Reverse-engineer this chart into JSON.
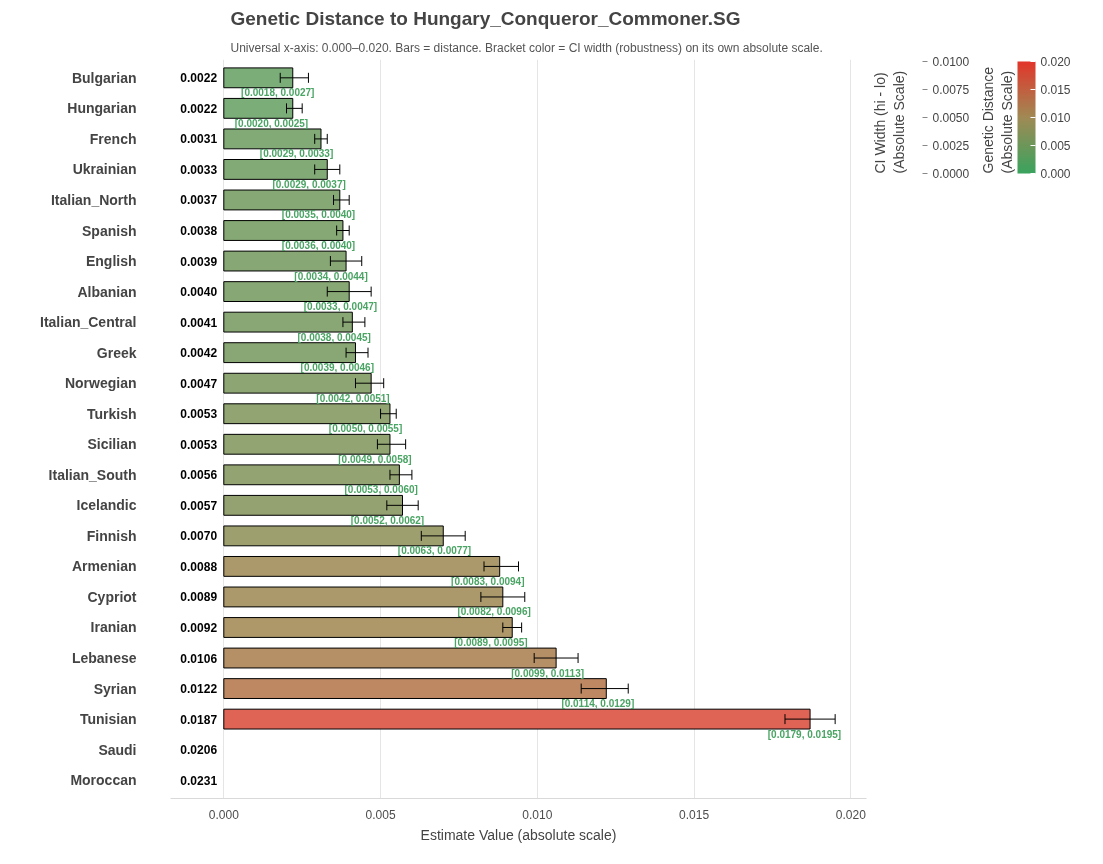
{
  "chart_data": {
    "type": "bar",
    "orientation": "horizontal",
    "title": "Genetic Distance to Hungary_Conqueror_Commoner.SG",
    "subtitle": "Universal x-axis: 0.000–0.020. Bars = distance. Bracket color = CI width (robustness) on its own absolute scale.",
    "xlabel": "Estimate Value (absolute scale)",
    "categories": [
      "Bulgarian",
      "Hungarian",
      "French",
      "Ukrainian",
      "Italian_North",
      "Spanish",
      "English",
      "Albanian",
      "Italian_Central",
      "Greek",
      "Norwegian",
      "Turkish",
      "Sicilian",
      "Italian_South",
      "Icelandic",
      "Finnish",
      "Armenian",
      "Cypriot",
      "Iranian",
      "Lebanese",
      "Syrian",
      "Tunisian",
      "Saudi",
      "Moroccan"
    ],
    "values": [
      0.0022,
      0.0022,
      0.0031,
      0.0033,
      0.0037,
      0.0038,
      0.0039,
      0.004,
      0.0041,
      0.0042,
      0.0047,
      0.0053,
      0.0053,
      0.0056,
      0.0057,
      0.007,
      0.0088,
      0.0089,
      0.0092,
      0.0106,
      0.0122,
      0.0187,
      null,
      null
    ],
    "value_labels": [
      "0.0022",
      "0.0022",
      "0.0031",
      "0.0033",
      "0.0037",
      "0.0038",
      "0.0039",
      "0.0040",
      "0.0041",
      "0.0042",
      "0.0047",
      "0.0053",
      "0.0053",
      "0.0056",
      "0.0057",
      "0.0070",
      "0.0088",
      "0.0089",
      "0.0092",
      "0.0106",
      "0.0122",
      "0.0187",
      "0.0206",
      "0.0231"
    ],
    "errors": [
      [
        0.0018,
        0.0027
      ],
      [
        0.002,
        0.0025
      ],
      [
        0.0029,
        0.0033
      ],
      [
        0.0029,
        0.0037
      ],
      [
        0.0035,
        0.004
      ],
      [
        0.0036,
        0.004
      ],
      [
        0.0034,
        0.0044
      ],
      [
        0.0033,
        0.0047
      ],
      [
        0.0038,
        0.0045
      ],
      [
        0.0039,
        0.0046
      ],
      [
        0.0042,
        0.0051
      ],
      [
        0.005,
        0.0055
      ],
      [
        0.0049,
        0.0058
      ],
      [
        0.0053,
        0.006
      ],
      [
        0.0052,
        0.0062
      ],
      [
        0.0063,
        0.0077
      ],
      [
        0.0083,
        0.0094
      ],
      [
        0.0082,
        0.0096
      ],
      [
        0.0089,
        0.0095
      ],
      [
        0.0099,
        0.0113
      ],
      [
        0.0114,
        0.0129
      ],
      [
        0.0179,
        0.0195
      ],
      null,
      null
    ],
    "colors": [
      "#7aad78",
      "#7aad78",
      "#81aa76",
      "#82aa76",
      "#85a875",
      "#86a875",
      "#87a875",
      "#87a874",
      "#88a774",
      "#89a774",
      "#8da573",
      "#91a472",
      "#91a472",
      "#93a371",
      "#94a271",
      "#9e9f6e",
      "#ab996b",
      "#ac996b",
      "#ae986a",
      "#b59067",
      "#be8863",
      "#e06455",
      null,
      null
    ],
    "xlim": [
      -0.0017,
      0.0205
    ],
    "xticks": [
      {
        "value": 0,
        "label": "0.000"
      },
      0.005,
      {
        "value": 0.01,
        "label": "0.010"
      },
      0.015,
      {
        "value": 0.02,
        "label": "0.020"
      }
    ],
    "grid": "x",
    "clabel": "Genetic Distance\n(Absolute Scale)",
    "clim": [
      0,
      0.02
    ],
    "cticks": [
      {
        "value": 0,
        "label": "0.000"
      },
      0.005,
      {
        "value": 0.01,
        "label": "0.010"
      },
      0.015,
      {
        "value": 0.02,
        "label": "0.020"
      }
    ],
    "annotations": [
      {
        "text": "[0.0018, 0.0027]",
        "x": 0.0027,
        "y": "Bulgarian"
      },
      {
        "text": "[0.0020, 0.0025]",
        "x": 0.0025,
        "y": "Hungarian"
      },
      {
        "text": "[0.0029, 0.0033]",
        "x": 0.0033,
        "y": "French"
      },
      {
        "text": "[0.0029, 0.0037]",
        "x": 0.0037,
        "y": "Ukrainian"
      },
      {
        "text": "[0.0035, 0.0040]",
        "x": 0.004,
        "y": "Italian_North"
      },
      {
        "text": "[0.0036, 0.0040]",
        "x": 0.004,
        "y": "Spanish"
      },
      {
        "text": "[0.0034, 0.0044]",
        "x": 0.0044,
        "y": "English"
      },
      {
        "text": "[0.0033, 0.0047]",
        "x": 0.0047,
        "y": "Albanian"
      },
      {
        "text": "[0.0038, 0.0045]",
        "x": 0.0045,
        "y": "Italian_Central"
      },
      {
        "text": "[0.0039, 0.0046]",
        "x": 0.0046,
        "y": "Greek"
      },
      {
        "text": "[0.0042, 0.0051]",
        "x": 0.0051,
        "y": "Norwegian"
      },
      {
        "text": "[0.0050, 0.0055]",
        "x": 0.0055,
        "y": "Turkish"
      },
      {
        "text": "[0.0049, 0.0058]",
        "x": 0.0058,
        "y": "Sicilian"
      },
      {
        "text": "[0.0053, 0.0060]",
        "x": 0.006,
        "y": "Italian_South"
      },
      {
        "text": "[0.0052, 0.0062]",
        "x": 0.0062,
        "y": "Icelandic"
      },
      {
        "text": "[0.0063, 0.0077]",
        "x": 0.0077,
        "y": "Finnish"
      },
      {
        "text": "[0.0083, 0.0094]",
        "x": 0.0094,
        "y": "Armenian"
      },
      {
        "text": "[0.0082, 0.0096]",
        "x": 0.0096,
        "y": "Cypriot"
      },
      {
        "text": "[0.0089, 0.0095]",
        "x": 0.0095,
        "y": "Iranian"
      },
      {
        "text": "[0.0099, 0.0113]",
        "x": 0.0113,
        "y": "Lebanese"
      },
      {
        "text": "[0.0114, 0.0129]",
        "x": 0.0129,
        "y": "Syrian"
      },
      {
        "text": "[0.0179, 0.0195]",
        "x": 0.0195,
        "y": "Tunisian"
      },
      "CI Width (hi - lo)\n(Absolute Scale)",
      "0.0100",
      "0.0075",
      "0.0050",
      "0.0025",
      "0.0000"
    ]
  }
}
